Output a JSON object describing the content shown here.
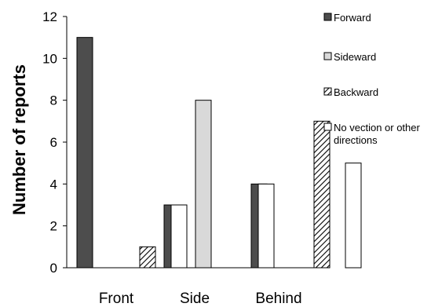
{
  "chart_data": {
    "type": "bar",
    "title": "",
    "xlabel": "",
    "ylabel": "Number of reports",
    "categories": [
      "Front",
      "Side",
      "Behind"
    ],
    "ylim": [
      0,
      12
    ],
    "yticks": [
      "0",
      "2",
      "4",
      "6",
      "8",
      "10",
      "12"
    ],
    "grid": false,
    "legend_position": "right",
    "series": [
      {
        "name": "Forward",
        "values": [
          11,
          3,
          4
        ],
        "color": "#4d4d4d",
        "pattern": "solid"
      },
      {
        "name": "Sideward",
        "values": [
          0,
          8,
          0
        ],
        "color": "#d9d9d9",
        "pattern": "solid"
      },
      {
        "name": "Backward",
        "values": [
          1,
          0,
          7
        ],
        "color": "#ffffff",
        "pattern": "diagonal-hatch"
      },
      {
        "name": "No vection or other directions",
        "values": [
          3,
          4,
          5
        ],
        "color": "#ffffff",
        "pattern": "solid"
      }
    ],
    "legend_lines": [
      [
        "Forward"
      ],
      [
        "Sideward"
      ],
      [
        "Backward"
      ],
      [
        "No vection or other",
        "directions"
      ]
    ]
  }
}
